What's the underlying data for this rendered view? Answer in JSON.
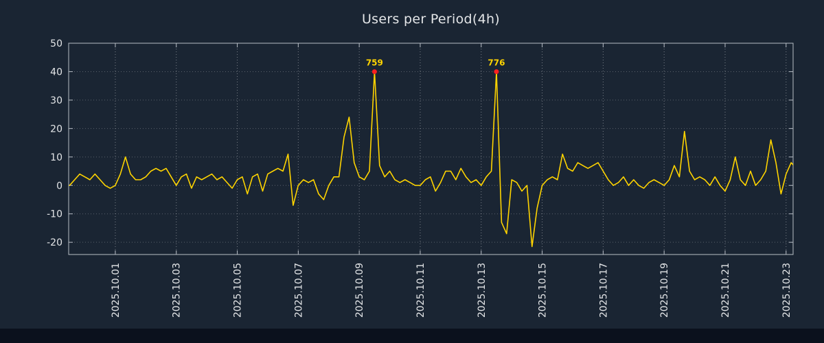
{
  "title": "Users per Period(4h)",
  "colors": {
    "background": "#1a2533",
    "bottom_bar": "#0b111d",
    "line": "#ffd400",
    "marker": "#ff2020",
    "annotation_text": "#ffd400",
    "text": "#e4e6e8",
    "axis": "#b8bec6",
    "grid": "#ffffff"
  },
  "chart_data": {
    "type": "line",
    "title": "Users per Period(4h)",
    "period": "4h",
    "x_tick_labels": [
      "2025.10.01",
      "2025.10.03",
      "2025.10.05",
      "2025.10.07",
      "2025.10.09",
      "2025.10.11",
      "2025.10.13",
      "2025.10.15",
      "2025.10.17",
      "2025.10.19",
      "2025.10.21",
      "2025.10.23"
    ],
    "x_tick_step_days": 2,
    "y_ticks": [
      50,
      40,
      30,
      20,
      10,
      0,
      -10,
      -20
    ],
    "ylim": [
      -24.3,
      50
    ],
    "xlim_days": [
      -1.53,
      22.23
    ],
    "x_start_day": -1.5,
    "x_step_days": 0.1666667,
    "clip_value": 40,
    "grid": {
      "vertical": true,
      "horizontal": true,
      "style": "dotted"
    },
    "legend": null,
    "series": [
      {
        "name": "users",
        "values": [
          0,
          2,
          4,
          3,
          2,
          4,
          2,
          0,
          -1,
          0,
          4,
          10,
          4,
          2,
          2,
          3,
          5,
          6,
          5,
          6,
          3,
          0,
          3,
          4,
          -1,
          3,
          2,
          3,
          4,
          2,
          3,
          1,
          -1,
          2,
          3,
          -3,
          3,
          4,
          -2,
          4,
          5,
          6,
          5,
          11,
          -7,
          0,
          2,
          1,
          2,
          -3,
          -5,
          0,
          3,
          3,
          17,
          24,
          8,
          3,
          2,
          5,
          759,
          7,
          3,
          5,
          2,
          1,
          2,
          1,
          0,
          0,
          2,
          3,
          -2,
          1,
          5,
          5,
          2,
          6,
          3,
          1,
          2,
          0,
          3,
          5,
          776,
          -13,
          -17,
          2,
          1,
          -2,
          0,
          -21.5,
          -8,
          0,
          2,
          3,
          2,
          11,
          6,
          5,
          8,
          7,
          6,
          7,
          8,
          5,
          2,
          0,
          1,
          3,
          0,
          2,
          0,
          -1,
          1,
          2,
          1,
          0,
          2,
          7,
          3,
          19,
          5,
          2,
          3,
          2,
          0,
          3,
          0,
          -2,
          2,
          10,
          2,
          0,
          5,
          0,
          2,
          5,
          16,
          8,
          -3,
          4,
          8,
          6,
          7
        ]
      }
    ],
    "annotations": [
      {
        "x_day": 8.5,
        "value": 759,
        "label": "759"
      },
      {
        "x_day": 12.5,
        "value": 776,
        "label": "776"
      }
    ]
  }
}
